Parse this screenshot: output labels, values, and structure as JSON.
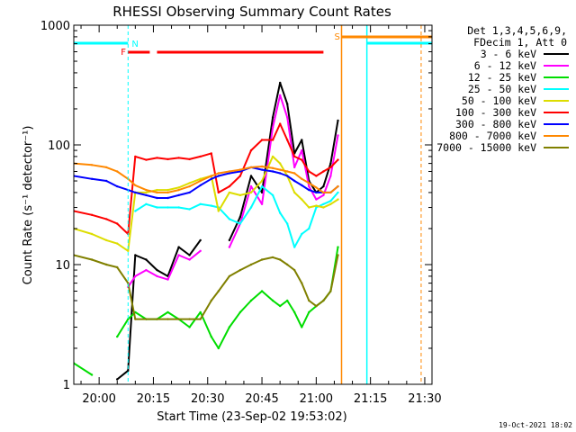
{
  "chart_data": {
    "type": "line",
    "title": "RHESSI Observing Summary Count Rates",
    "xlabel": "Start Time (23-Sep-02 19:53:02)",
    "ylabel": "Count Rate (s⁻¹ detector⁻¹)",
    "y_scale": "log",
    "ylim": [
      1,
      1000
    ],
    "xlim": [
      "19:53",
      "21:32"
    ],
    "x_ticks": [
      "20:00",
      "20:15",
      "20:30",
      "20:45",
      "21:00",
      "21:15",
      "21:30"
    ],
    "y_ticks": [
      "1",
      "10",
      "100",
      "1000"
    ],
    "legend_header": [
      "Det 1,3,4,5,6,9,",
      "FDecim 1, Att 0"
    ],
    "x": [
      "19:53",
      "19:58",
      "20:02",
      "20:05",
      "20:08",
      "20:10",
      "20:13",
      "20:16",
      "20:19",
      "20:22",
      "20:25",
      "20:28",
      "20:31",
      "20:33",
      "20:36",
      "20:39",
      "20:42",
      "20:45",
      "20:48",
      "20:50",
      "20:52",
      "20:54",
      "20:56",
      "20:58",
      "21:00",
      "21:02",
      "21:04",
      "21:06"
    ],
    "series": [
      {
        "name": "3 - 6 keV",
        "color": "#000000",
        "values": [
          null,
          null,
          null,
          1.1,
          1.3,
          12,
          11,
          9,
          8,
          14,
          12,
          16,
          null,
          null,
          16,
          25,
          55,
          40,
          170,
          330,
          220,
          85,
          110,
          50,
          40,
          45,
          70,
          160
        ]
      },
      {
        "name": "6 - 12 keV",
        "color": "#ff00ff",
        "values": [
          null,
          null,
          null,
          null,
          6.5,
          8,
          9,
          8,
          7.5,
          12,
          11,
          13,
          null,
          null,
          14,
          22,
          45,
          32,
          140,
          260,
          170,
          65,
          90,
          45,
          35,
          38,
          55,
          120
        ]
      },
      {
        "name": "12 - 25 keV",
        "color": "#00dd00",
        "values": [
          1.5,
          1.2,
          null,
          2.5,
          3.5,
          4,
          3.5,
          3.5,
          4,
          3.5,
          3,
          4,
          2.5,
          2,
          3,
          4,
          5,
          6,
          5,
          4.5,
          5,
          4,
          3,
          4,
          4.5,
          5,
          6,
          14
        ]
      },
      {
        "name": "25 - 50 keV",
        "color": "#00ffff",
        "values": [
          null,
          null,
          null,
          null,
          null,
          28,
          32,
          30,
          30,
          30,
          29,
          32,
          31,
          30,
          24,
          22,
          30,
          45,
          38,
          27,
          22,
          14,
          18,
          20,
          30,
          32,
          34,
          40
        ]
      },
      {
        "name": "50 - 100 keV",
        "color": "#dddd00",
        "values": [
          20,
          18,
          16,
          15,
          13,
          40,
          40,
          42,
          42,
          44,
          48,
          52,
          55,
          28,
          40,
          38,
          40,
          50,
          80,
          70,
          55,
          40,
          35,
          30,
          31,
          30,
          32,
          35
        ]
      },
      {
        "name": "100 - 300 keV",
        "color": "#ff0000",
        "values": [
          28,
          26,
          24,
          22,
          18,
          80,
          75,
          78,
          76,
          78,
          76,
          80,
          85,
          40,
          45,
          55,
          90,
          110,
          110,
          150,
          110,
          80,
          75,
          60,
          55,
          60,
          65,
          75
        ]
      },
      {
        "name": "300 - 800 keV",
        "color": "#0000ff",
        "values": [
          55,
          52,
          50,
          45,
          42,
          40,
          38,
          36,
          36,
          38,
          40,
          46,
          52,
          55,
          58,
          60,
          65,
          62,
          60,
          58,
          55,
          50,
          46,
          42,
          40,
          40,
          40,
          45
        ]
      },
      {
        "name": "800 - 7000 keV",
        "color": "#ff8800",
        "values": [
          70,
          68,
          65,
          60,
          52,
          46,
          42,
          40,
          40,
          42,
          45,
          50,
          55,
          58,
          60,
          62,
          65,
          66,
          64,
          62,
          60,
          58,
          52,
          48,
          44,
          40,
          40,
          45
        ]
      },
      {
        "name": "7000 - 15000 keV",
        "color": "#808000",
        "values": [
          12,
          11,
          10,
          9.5,
          7,
          3.5,
          3.5,
          3.5,
          3.5,
          3.5,
          3.5,
          3.5,
          5,
          6,
          8,
          9,
          10,
          11,
          11.5,
          11,
          10,
          9,
          7,
          5,
          4.5,
          5,
          6,
          12
        ]
      }
    ],
    "flags": {
      "saa_label": "S",
      "night_label": "N",
      "flare_label": "F"
    },
    "grid": false,
    "legend_placement": "right"
  },
  "footer": "19-Oct-2021 18:02"
}
